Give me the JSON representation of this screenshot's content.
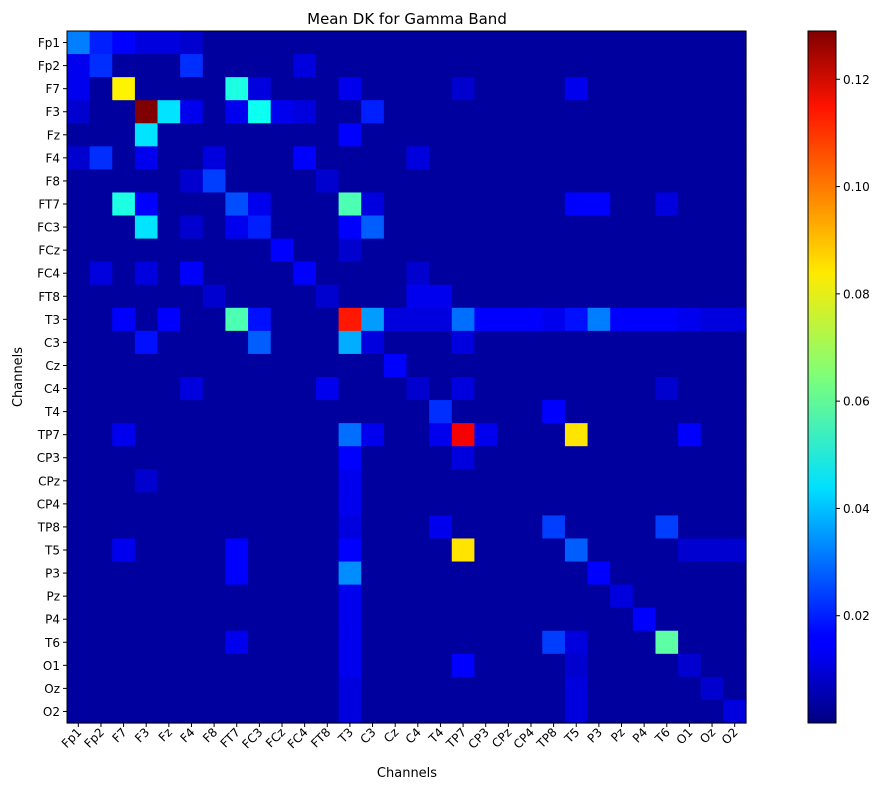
{
  "chart_data": {
    "type": "heatmap",
    "title": "Mean DK for Gamma Band",
    "xlabel": "Channels",
    "ylabel": "Channels",
    "channels": [
      "Fp1",
      "Fp2",
      "F7",
      "F3",
      "Fz",
      "F4",
      "F8",
      "FT7",
      "FC3",
      "FCz",
      "FC4",
      "FT8",
      "T3",
      "C3",
      "Cz",
      "C4",
      "T4",
      "TP7",
      "CP3",
      "CPz",
      "CP4",
      "TP8",
      "T5",
      "P3",
      "Pz",
      "P4",
      "T6",
      "O1",
      "Oz",
      "O2"
    ],
    "colormap": "jet",
    "vmin": 0,
    "vmax": 0.129,
    "colorbar_ticks": [
      0.02,
      0.04,
      0.06,
      0.08,
      0.1,
      0.12
    ],
    "colorbar_tick_labels": [
      "0.02",
      "0.04",
      "0.06",
      "0.08",
      "0.10",
      "0.12"
    ],
    "base_value": 0.004,
    "matrix_entries": [
      [
        "Fp1",
        "Fp1",
        0.032
      ],
      [
        "Fp1",
        "Fp2",
        0.02
      ],
      [
        "Fp1",
        "F7",
        0.016
      ],
      [
        "Fp1",
        "F3",
        0.012
      ],
      [
        "Fp1",
        "Fz",
        0.012
      ],
      [
        "Fp1",
        "F4",
        0.01
      ],
      [
        "Fp2",
        "Fp1",
        0.014
      ],
      [
        "Fp2",
        "Fp2",
        0.022
      ],
      [
        "Fp2",
        "F4",
        0.022
      ],
      [
        "Fp2",
        "FC4",
        0.012
      ],
      [
        "F7",
        "Fp1",
        0.014
      ],
      [
        "F7",
        "F7",
        0.082
      ],
      [
        "F7",
        "FT7",
        0.052
      ],
      [
        "F7",
        "FC3",
        0.012
      ],
      [
        "F7",
        "T3",
        0.014
      ],
      [
        "F7",
        "TP7",
        0.01
      ],
      [
        "F7",
        "T5",
        0.014
      ],
      [
        "F3",
        "Fp1",
        0.01
      ],
      [
        "F3",
        "F3",
        0.129
      ],
      [
        "F3",
        "Fz",
        0.045
      ],
      [
        "F3",
        "F4",
        0.014
      ],
      [
        "F3",
        "FT7",
        0.014
      ],
      [
        "F3",
        "FC3",
        0.05
      ],
      [
        "F3",
        "FCz",
        0.014
      ],
      [
        "F3",
        "FC4",
        0.012
      ],
      [
        "F3",
        "C3",
        0.02
      ],
      [
        "Fz",
        "F3",
        0.045
      ],
      [
        "Fz",
        "T3",
        0.016
      ],
      [
        "F4",
        "Fp1",
        0.01
      ],
      [
        "F4",
        "Fp2",
        0.022
      ],
      [
        "F4",
        "F3",
        0.014
      ],
      [
        "F4",
        "F8",
        0.012
      ],
      [
        "F4",
        "FC4",
        0.016
      ],
      [
        "F4",
        "C4",
        0.012
      ],
      [
        "F8",
        "F4",
        0.01
      ],
      [
        "F8",
        "F8",
        0.024
      ],
      [
        "F8",
        "FT8",
        0.01
      ],
      [
        "FT7",
        "F7",
        0.052
      ],
      [
        "FT7",
        "F3",
        0.016
      ],
      [
        "FT7",
        "FT7",
        0.026
      ],
      [
        "FT7",
        "FC3",
        0.014
      ],
      [
        "FT7",
        "T3",
        0.058
      ],
      [
        "FT7",
        "C3",
        0.012
      ],
      [
        "FT7",
        "T5",
        0.016
      ],
      [
        "FT7",
        "P3",
        0.016
      ],
      [
        "FT7",
        "T6",
        0.012
      ],
      [
        "FC3",
        "F3",
        0.045
      ],
      [
        "FC3",
        "F4",
        0.01
      ],
      [
        "FC3",
        "FT7",
        0.014
      ],
      [
        "FC3",
        "FC3",
        0.02
      ],
      [
        "FC3",
        "T3",
        0.016
      ],
      [
        "FC3",
        "C3",
        0.028
      ],
      [
        "FCz",
        "FCz",
        0.016
      ],
      [
        "FCz",
        "T3",
        0.01
      ],
      [
        "FC4",
        "Fp2",
        0.012
      ],
      [
        "FC4",
        "F3",
        0.012
      ],
      [
        "FC4",
        "F4",
        0.016
      ],
      [
        "FC4",
        "FC4",
        0.016
      ],
      [
        "FC4",
        "C4",
        0.01
      ],
      [
        "FT8",
        "F8",
        0.01
      ],
      [
        "FT8",
        "FT8",
        0.01
      ],
      [
        "FT8",
        "C4",
        0.014
      ],
      [
        "FT8",
        "T4",
        0.014
      ],
      [
        "T3",
        "F7",
        0.016
      ],
      [
        "T3",
        "Fz",
        0.016
      ],
      [
        "T3",
        "FT7",
        0.058
      ],
      [
        "T3",
        "FC3",
        0.018
      ],
      [
        "T3",
        "T3",
        0.11
      ],
      [
        "T3",
        "C3",
        0.036
      ],
      [
        "T3",
        "Cz",
        0.012
      ],
      [
        "T3",
        "C4",
        0.012
      ],
      [
        "T3",
        "T4",
        0.012
      ],
      [
        "T3",
        "TP7",
        0.03
      ],
      [
        "T3",
        "CP3",
        0.016
      ],
      [
        "T3",
        "CPz",
        0.016
      ],
      [
        "T3",
        "CP4",
        0.016
      ],
      [
        "T3",
        "TP8",
        0.014
      ],
      [
        "T3",
        "T5",
        0.018
      ],
      [
        "T3",
        "P3",
        0.032
      ],
      [
        "T3",
        "Pz",
        0.016
      ],
      [
        "T3",
        "P4",
        0.016
      ],
      [
        "T3",
        "T6",
        0.016
      ],
      [
        "T3",
        "O1",
        0.014
      ],
      [
        "T3",
        "Oz",
        0.012
      ],
      [
        "T3",
        "O2",
        0.012
      ],
      [
        "C3",
        "F3",
        0.018
      ],
      [
        "C3",
        "FC3",
        0.028
      ],
      [
        "C3",
        "T3",
        0.038
      ],
      [
        "C3",
        "C3",
        0.012
      ],
      [
        "C3",
        "TP7",
        0.012
      ],
      [
        "Cz",
        "Cz",
        0.016
      ],
      [
        "C4",
        "F4",
        0.012
      ],
      [
        "C4",
        "FT8",
        0.014
      ],
      [
        "C4",
        "C4",
        0.01
      ],
      [
        "C4",
        "TP7",
        0.012
      ],
      [
        "C4",
        "T6",
        0.01
      ],
      [
        "T4",
        "T4",
        0.022
      ],
      [
        "T4",
        "TP8",
        0.016
      ],
      [
        "TP7",
        "F7",
        0.014
      ],
      [
        "TP7",
        "T3",
        0.03
      ],
      [
        "TP7",
        "C3",
        0.014
      ],
      [
        "TP7",
        "T4",
        0.014
      ],
      [
        "TP7",
        "TP7",
        0.114
      ],
      [
        "TP7",
        "CP3",
        0.014
      ],
      [
        "TP7",
        "T5",
        0.084
      ],
      [
        "TP7",
        "O1",
        0.016
      ],
      [
        "CP3",
        "T3",
        0.016
      ],
      [
        "CP3",
        "TP7",
        0.012
      ],
      [
        "CPz",
        "F3",
        0.01
      ],
      [
        "CPz",
        "T3",
        0.014
      ],
      [
        "CP4",
        "T3",
        0.014
      ],
      [
        "TP8",
        "T3",
        0.012
      ],
      [
        "TP8",
        "T4",
        0.014
      ],
      [
        "TP8",
        "TP8",
        0.024
      ],
      [
        "TP8",
        "T6",
        0.024
      ],
      [
        "T5",
        "F7",
        0.014
      ],
      [
        "T5",
        "FT7",
        0.016
      ],
      [
        "T5",
        "T3",
        0.016
      ],
      [
        "T5",
        "TP7",
        0.084
      ],
      [
        "T5",
        "T5",
        0.028
      ],
      [
        "T5",
        "O1",
        0.01
      ],
      [
        "T5",
        "Oz",
        0.01
      ],
      [
        "T5",
        "O2",
        0.01
      ],
      [
        "P3",
        "FT7",
        0.016
      ],
      [
        "P3",
        "T3",
        0.034
      ],
      [
        "P3",
        "P3",
        0.016
      ],
      [
        "Pz",
        "T3",
        0.014
      ],
      [
        "Pz",
        "Pz",
        0.012
      ],
      [
        "P4",
        "T3",
        0.014
      ],
      [
        "P4",
        "P4",
        0.016
      ],
      [
        "T6",
        "FT7",
        0.014
      ],
      [
        "T6",
        "T3",
        0.014
      ],
      [
        "T6",
        "TP8",
        0.024
      ],
      [
        "T6",
        "T5",
        0.012
      ],
      [
        "T6",
        "T6",
        0.06
      ],
      [
        "O1",
        "T3",
        0.014
      ],
      [
        "O1",
        "TP7",
        0.016
      ],
      [
        "O1",
        "T5",
        0.01
      ],
      [
        "O1",
        "O1",
        0.01
      ],
      [
        "Oz",
        "T3",
        0.012
      ],
      [
        "Oz",
        "T5",
        0.012
      ],
      [
        "Oz",
        "Oz",
        0.01
      ],
      [
        "O2",
        "T3",
        0.012
      ],
      [
        "O2",
        "T5",
        0.012
      ],
      [
        "O2",
        "O2",
        0.012
      ]
    ]
  }
}
